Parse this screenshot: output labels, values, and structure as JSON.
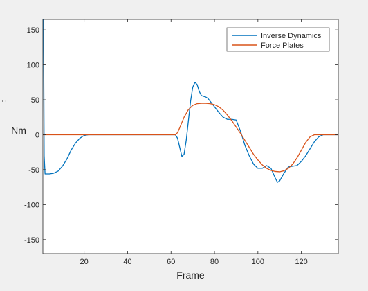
{
  "chart_data": {
    "type": "line",
    "title": "",
    "xlabel": "Frame",
    "ylabel": "Nm",
    "ylabel_fragment": ":",
    "xlim": [
      1,
      137
    ],
    "ylim": [
      -170,
      165
    ],
    "xticks": [
      20,
      40,
      60,
      80,
      100,
      120
    ],
    "yticks": [
      -150,
      -100,
      -50,
      0,
      50,
      100,
      150
    ],
    "grid": false,
    "legend_position": "top-right",
    "series": [
      {
        "name": "Inverse Dynamics",
        "color": "#0072bd",
        "x": [
          1,
          1.3,
          1.6,
          2,
          4,
          6,
          8,
          10,
          12,
          14,
          16,
          18,
          20,
          22,
          25,
          30,
          40,
          50,
          60,
          61,
          62,
          63,
          64,
          65,
          66,
          67,
          68,
          69,
          70,
          71,
          72,
          73,
          74,
          75,
          76,
          77,
          78,
          79,
          80,
          82,
          84,
          86,
          88,
          90,
          92,
          94,
          96,
          98,
          100,
          102,
          104,
          106,
          108,
          109,
          110,
          112,
          114,
          116,
          118,
          120,
          122,
          124,
          126,
          128,
          130,
          132,
          134,
          137
        ],
        "y": [
          165,
          165,
          -30,
          -56,
          -56,
          -55,
          -52,
          -45,
          -35,
          -22,
          -12,
          -5,
          -1,
          0,
          0,
          0,
          0,
          0,
          0,
          0,
          0,
          -5,
          -18,
          -31,
          -28,
          -8,
          20,
          48,
          68,
          75,
          72,
          62,
          56,
          55,
          54,
          52,
          48,
          44,
          40,
          32,
          25,
          22,
          22,
          21,
          5,
          -15,
          -30,
          -42,
          -48,
          -48,
          -44,
          -48,
          -62,
          -68,
          -66,
          -55,
          -46,
          -45,
          -44,
          -38,
          -30,
          -20,
          -10,
          -3,
          0,
          0,
          0,
          0
        ]
      },
      {
        "name": "Force Plates",
        "color": "#d95319",
        "x": [
          1,
          20,
          40,
          60,
          62,
          63,
          64,
          66,
          68,
          70,
          72,
          74,
          76,
          78,
          80,
          82,
          84,
          86,
          88,
          90,
          92,
          94,
          96,
          98,
          100,
          102,
          104,
          106,
          108,
          110,
          112,
          114,
          116,
          118,
          120,
          122,
          124,
          126,
          128,
          130,
          132,
          134,
          137
        ],
        "y": [
          0,
          0,
          0,
          0,
          0,
          3,
          10,
          25,
          36,
          42,
          44.5,
          45,
          45,
          44.5,
          43,
          40,
          35,
          28,
          20,
          11,
          2,
          -8,
          -18,
          -28,
          -36,
          -43,
          -48,
          -51,
          -52.5,
          -53,
          -51.5,
          -48,
          -42,
          -33,
          -22,
          -11,
          -3,
          0,
          0,
          0,
          0,
          0,
          0
        ]
      }
    ]
  }
}
